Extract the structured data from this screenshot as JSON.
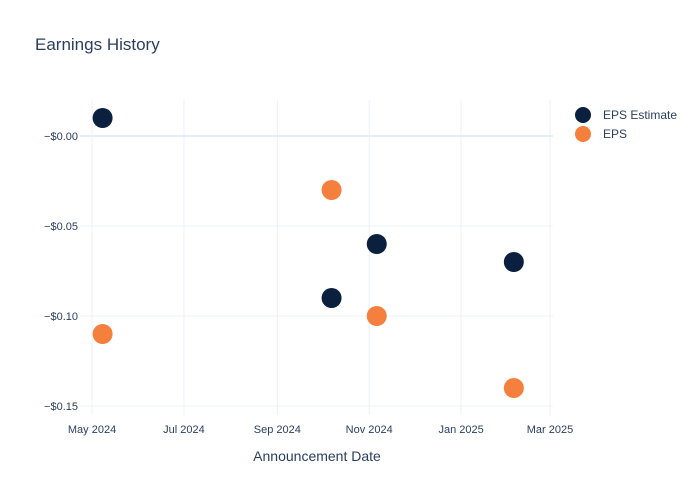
{
  "chart_data": {
    "type": "scatter",
    "title": "Earnings History",
    "xlabel": "Announcement Date",
    "ylabel": "",
    "x_ticks": [
      {
        "date": "2024-05-01",
        "label": "May 2024"
      },
      {
        "date": "2024-07-01",
        "label": "Jul 2024"
      },
      {
        "date": "2024-09-01",
        "label": "Sep 2024"
      },
      {
        "date": "2024-11-01",
        "label": "Nov 2024"
      },
      {
        "date": "2025-01-01",
        "label": "Jan 2025"
      },
      {
        "date": "2025-03-01",
        "label": "Mar 2025"
      }
    ],
    "y_ticks": [
      {
        "value": 0,
        "label": "−$0.00"
      },
      {
        "value": -0.05,
        "label": "−$0.05"
      },
      {
        "value": -0.1,
        "label": "−$0.10"
      },
      {
        "value": -0.15,
        "label": "−$0.15"
      }
    ],
    "xlim": [
      "2024-04-23",
      "2025-03-03"
    ],
    "ylim": [
      -0.155,
      0.02
    ],
    "grid": true,
    "legend_position": "top-right",
    "series": [
      {
        "name": "EPS Estimate",
        "color": "#0b1f3f",
        "points": [
          {
            "x": "2024-05-08",
            "y": 0.01
          },
          {
            "x": "2024-10-07",
            "y": -0.09
          },
          {
            "x": "2024-11-06",
            "y": -0.06
          },
          {
            "x": "2025-02-05",
            "y": -0.07
          }
        ]
      },
      {
        "name": "EPS",
        "color": "#f5803e",
        "points": [
          {
            "x": "2024-05-08",
            "y": -0.11
          },
          {
            "x": "2024-10-07",
            "y": -0.03
          },
          {
            "x": "2024-11-06",
            "y": -0.1
          },
          {
            "x": "2025-02-05",
            "y": -0.14
          }
        ]
      }
    ]
  }
}
